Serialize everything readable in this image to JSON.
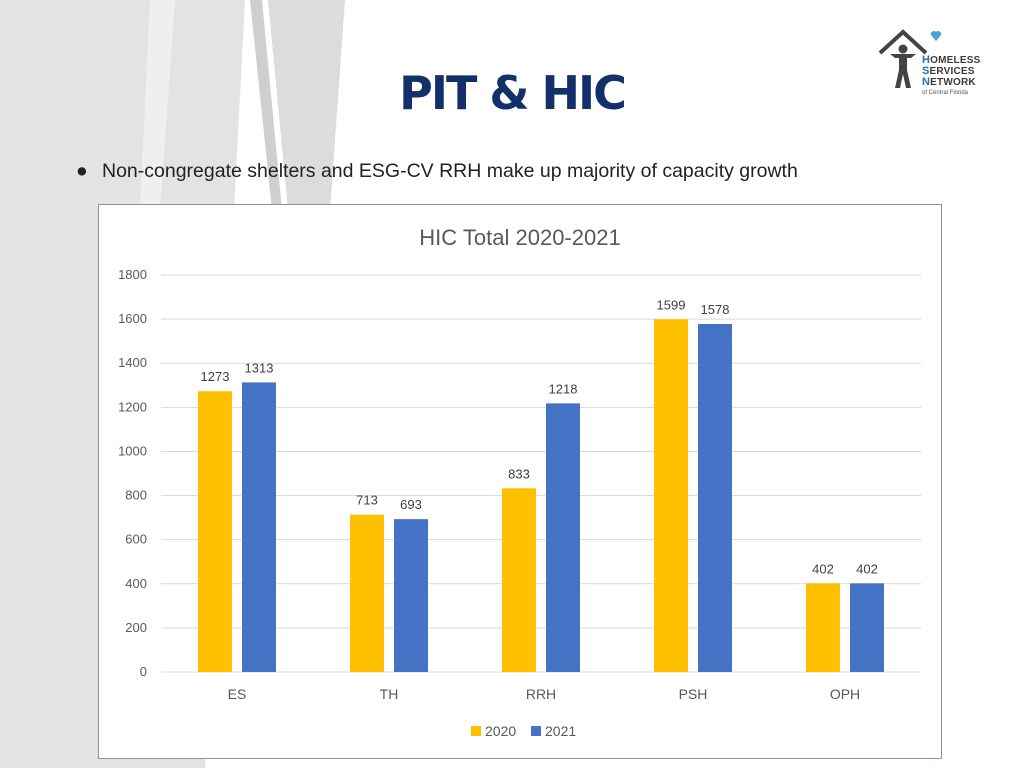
{
  "slide": {
    "title": "PIT & HIC",
    "bullet": "Non-congregate shelters and ESG-CV RRH make up majority of capacity growth",
    "bullet_marker": "●"
  },
  "logo": {
    "line1_cap": "H",
    "line1_rest": "OMELESS",
    "line2_cap": "S",
    "line2_rest": "ERVICES",
    "line3_cap": "N",
    "line3_rest": "ETWORK",
    "sub": "of Central Florida",
    "accent_color": "#4a9fd8"
  },
  "chart_data": {
    "type": "bar",
    "title": "HIC Total 2020-2021",
    "categories": [
      "ES",
      "TH",
      "RRH",
      "PSH",
      "OPH"
    ],
    "series": [
      {
        "name": "2020",
        "values": [
          1273,
          713,
          833,
          1599,
          402
        ],
        "color": "#FFC000"
      },
      {
        "name": "2021",
        "values": [
          1313,
          693,
          1218,
          1578,
          402
        ],
        "color": "#4472C4"
      }
    ],
    "yticks": [
      0,
      200,
      400,
      600,
      800,
      1000,
      1200,
      1400,
      1600,
      1800
    ],
    "ylim": [
      0,
      1800
    ],
    "xlabel": "",
    "ylabel": "",
    "grid": true,
    "legend": "bottom"
  }
}
